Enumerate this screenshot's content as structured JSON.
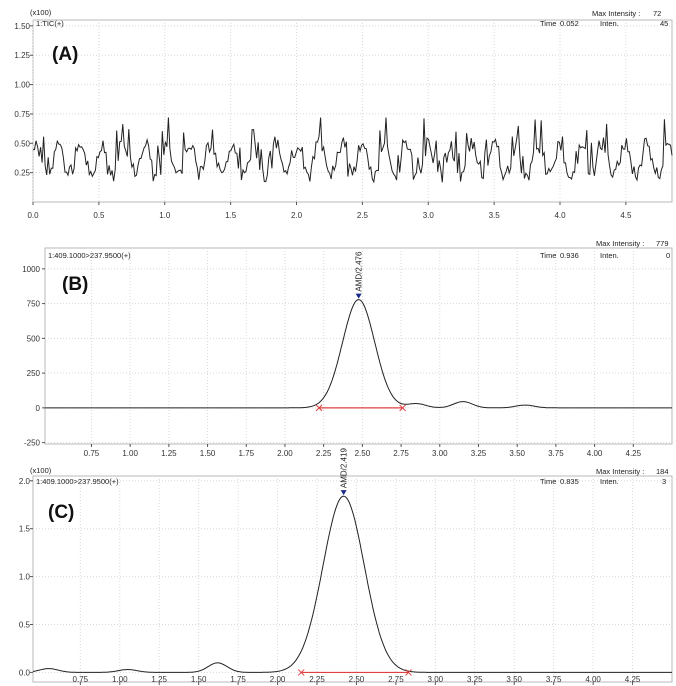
{
  "chart_data": [
    {
      "type": "line",
      "panel_letter": "(A)",
      "scale_note": "(x100)",
      "trace_label": "1:TIC(+)",
      "max_intensity_label": "Max Intensity :",
      "max_intensity_value": "72",
      "time_label": "Time",
      "time_value": "0.052",
      "inten_label": "Inten.",
      "inten_value": "45",
      "xlim": [
        0.0,
        4.85
      ],
      "ylim": [
        0.0,
        1.55
      ],
      "xticks": [
        "0.0",
        "0.5",
        "1.0",
        "1.5",
        "2.0",
        "2.5",
        "3.0",
        "3.5",
        "4.0",
        "4.5"
      ],
      "yticks": [
        "0.25",
        "0.50",
        "0.75",
        "1.00",
        "1.25",
        "1.50"
      ],
      "grid": true,
      "noise_baseline": 0.36,
      "noise_amplitude": 0.14,
      "noise_range": [
        0.1,
        0.72
      ]
    },
    {
      "type": "line",
      "panel_letter": "(B)",
      "trace_label": "1:409.1000>237.9500(+)",
      "max_intensity_label": "Max Intensity :",
      "max_intensity_value": "779",
      "time_label": "Time",
      "time_value": "0.936",
      "inten_label": "Inten.",
      "inten_value": "0",
      "xlim": [
        0.45,
        4.5
      ],
      "ylim": [
        -260,
        1150
      ],
      "xticks": [
        "0.75",
        "1.00",
        "1.25",
        "1.50",
        "1.75",
        "2.00",
        "2.25",
        "2.50",
        "2.75",
        "3.00",
        "3.25",
        "3.50",
        "3.75",
        "4.00",
        "4.25"
      ],
      "yticks": [
        "-250",
        "0",
        "250",
        "500",
        "750",
        "1000"
      ],
      "grid": true,
      "peak": {
        "label": "AMD/2.476",
        "rt": 2.476,
        "height": 779,
        "start": 2.22,
        "end": 2.76
      },
      "baseline_bumps": [
        {
          "x": 2.85,
          "height": 30
        },
        {
          "x": 3.15,
          "height": 45
        },
        {
          "x": 3.55,
          "height": 20
        }
      ]
    },
    {
      "type": "line",
      "panel_letter": "(C)",
      "scale_note": "(x100)",
      "trace_label": "1:409.1000>237.9500(+)",
      "max_intensity_label": "Max Intensity :",
      "max_intensity_value": "184",
      "time_label": "Time",
      "time_value": "0.835",
      "inten_label": "Inten.",
      "inten_value": "3",
      "xlim": [
        0.45,
        4.5
      ],
      "ylim": [
        -0.1,
        2.05
      ],
      "xticks": [
        "0.75",
        "1.00",
        "1.25",
        "1.50",
        "1.75",
        "2.00",
        "2.25",
        "2.50",
        "2.75",
        "3.00",
        "3.25",
        "3.50",
        "3.75",
        "4.00",
        "4.25"
      ],
      "yticks": [
        "0.0",
        "0.5",
        "1.0",
        "1.5",
        "2.0"
      ],
      "grid": true,
      "peak": {
        "label": "AMD/2.419",
        "rt": 2.419,
        "height": 1.84,
        "start": 2.15,
        "end": 2.83
      },
      "baseline_bumps": [
        {
          "x": 0.55,
          "height": 0.04
        },
        {
          "x": 1.05,
          "height": 0.03
        },
        {
          "x": 1.62,
          "height": 0.1
        }
      ]
    }
  ]
}
